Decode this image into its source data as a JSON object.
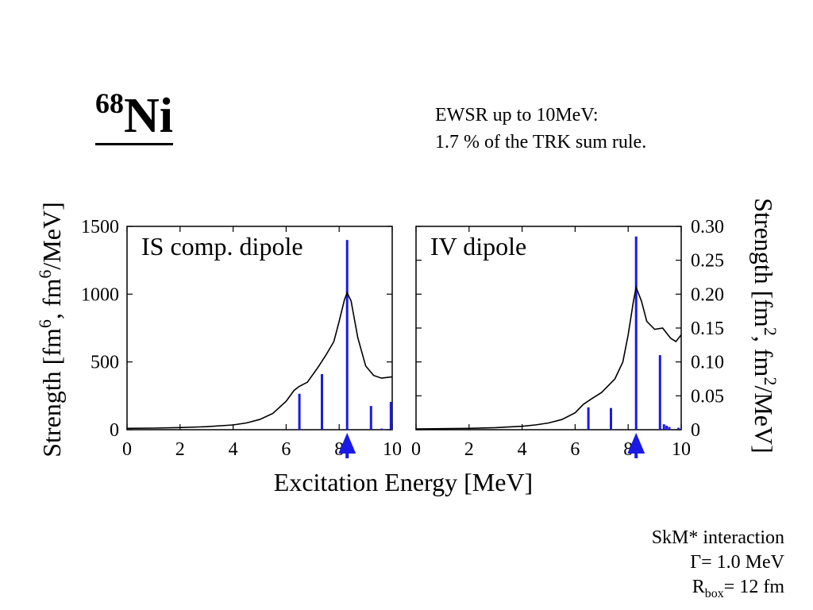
{
  "header": {
    "mass_number": "68",
    "element": "Ni",
    "ewsr_line1": "EWSR up to 10MeV:",
    "ewsr_line2": "1.7 % of the TRK sum rule."
  },
  "footer": {
    "interaction": "SkM* interaction",
    "gamma_label": "Γ= 1.0 MeV",
    "rbox_symbol": "R",
    "rbox_subscript": "box",
    "rbox_value": "= 12 fm"
  },
  "colors": {
    "curve": "#000000",
    "bars": "#1a1ae6",
    "arrow": "#1a1ae6",
    "axes": "#000000"
  },
  "chart_data": [
    {
      "type": "line",
      "panel": "left",
      "title": "IS comp. dipole",
      "xlabel": "Excitation Energy [MeV]",
      "ylabel": "Strength [fm6, fm6/MeV]",
      "xlim": [
        0,
        10
      ],
      "ylim": [
        0,
        1500
      ],
      "xticks": [
        0,
        2,
        4,
        6,
        8,
        10
      ],
      "yticks": [
        0,
        500,
        1000,
        1500
      ],
      "ytick_labels": [
        "0",
        "500",
        "1000",
        "1500"
      ],
      "ytick_side": "left",
      "curve": [
        [
          0,
          10
        ],
        [
          1,
          12
        ],
        [
          2,
          16
        ],
        [
          3,
          22
        ],
        [
          4,
          35
        ],
        [
          4.5,
          50
        ],
        [
          5,
          75
        ],
        [
          5.5,
          120
        ],
        [
          6,
          210
        ],
        [
          6.3,
          290
        ],
        [
          6.5,
          320
        ],
        [
          6.8,
          350
        ],
        [
          7.2,
          460
        ],
        [
          7.5,
          550
        ],
        [
          7.8,
          650
        ],
        [
          8.0,
          800
        ],
        [
          8.2,
          960
        ],
        [
          8.3,
          1010
        ],
        [
          8.45,
          950
        ],
        [
          8.7,
          680
        ],
        [
          9.0,
          470
        ],
        [
          9.3,
          400
        ],
        [
          9.6,
          380
        ],
        [
          10,
          390
        ]
      ],
      "sticks": [
        [
          6.5,
          265
        ],
        [
          7.35,
          410
        ],
        [
          8.3,
          1400
        ],
        [
          9.2,
          175
        ],
        [
          9.6,
          8
        ],
        [
          9.95,
          205
        ]
      ],
      "arrow_x": 8.3
    },
    {
      "type": "line",
      "panel": "right",
      "title": "IV dipole",
      "xlabel": "Excitation Energy [MeV]",
      "ylabel": "Strength [fm2, fm2/MeV]",
      "xlim": [
        0,
        10
      ],
      "ylim": [
        0,
        0.3
      ],
      "xticks": [
        0,
        2,
        4,
        6,
        8,
        10
      ],
      "yticks": [
        0,
        0.05,
        0.1,
        0.15,
        0.2,
        0.25,
        0.3
      ],
      "ytick_labels": [
        "0",
        "0.05",
        "0.10",
        "0.15",
        "0.20",
        "0.25",
        "0.30"
      ],
      "ytick_side": "right",
      "curve": [
        [
          0,
          0.001
        ],
        [
          1,
          0.0015
        ],
        [
          2,
          0.002
        ],
        [
          3,
          0.003
        ],
        [
          4,
          0.005
        ],
        [
          4.5,
          0.007
        ],
        [
          5,
          0.01
        ],
        [
          5.5,
          0.015
        ],
        [
          6,
          0.025
        ],
        [
          6.3,
          0.037
        ],
        [
          6.6,
          0.045
        ],
        [
          7.0,
          0.055
        ],
        [
          7.5,
          0.075
        ],
        [
          7.8,
          0.1
        ],
        [
          8.0,
          0.14
        ],
        [
          8.2,
          0.19
        ],
        [
          8.3,
          0.21
        ],
        [
          8.5,
          0.19
        ],
        [
          8.7,
          0.16
        ],
        [
          9.0,
          0.148
        ],
        [
          9.3,
          0.15
        ],
        [
          9.6,
          0.135
        ],
        [
          9.8,
          0.13
        ],
        [
          10,
          0.14
        ]
      ],
      "sticks": [
        [
          6.5,
          0.033
        ],
        [
          7.35,
          0.032
        ],
        [
          8.3,
          0.285
        ],
        [
          9.2,
          0.11
        ],
        [
          9.35,
          0.008
        ],
        [
          9.45,
          0.006
        ],
        [
          9.55,
          0.004
        ],
        [
          9.9,
          0.003
        ]
      ],
      "arrow_x": 8.3
    }
  ]
}
